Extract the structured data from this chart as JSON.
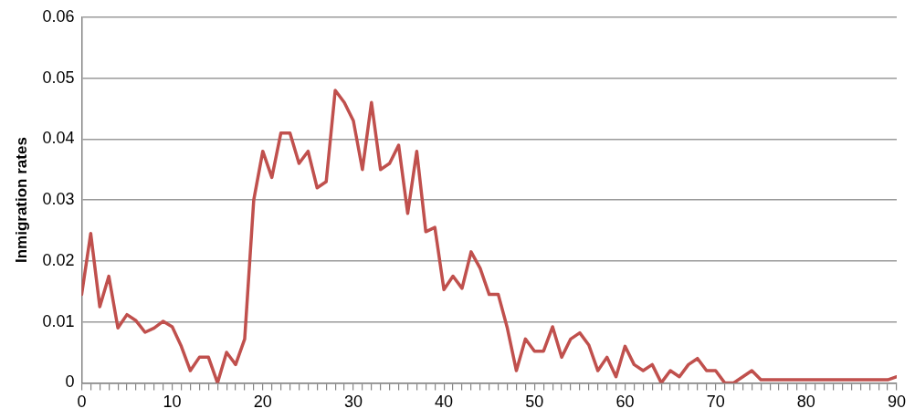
{
  "chart_data": {
    "type": "line",
    "ylabel": "Inmigration rates",
    "x": [
      0,
      1,
      2,
      3,
      4,
      5,
      6,
      7,
      8,
      9,
      10,
      11,
      12,
      13,
      14,
      15,
      16,
      17,
      18,
      19,
      20,
      21,
      22,
      23,
      24,
      25,
      26,
      27,
      28,
      29,
      30,
      31,
      32,
      33,
      34,
      35,
      36,
      37,
      38,
      39,
      40,
      41,
      42,
      43,
      44,
      45,
      46,
      47,
      48,
      49,
      50,
      51,
      52,
      53,
      54,
      55,
      56,
      57,
      58,
      59,
      60,
      61,
      62,
      63,
      64,
      65,
      66,
      67,
      68,
      69,
      70,
      71,
      72,
      73,
      74,
      75,
      76,
      77,
      78,
      79,
      80,
      81,
      82,
      83,
      84,
      85,
      86,
      87,
      88,
      89,
      90
    ],
    "series": [
      {
        "color": "#c0504d",
        "values": [
          0.0145,
          0.0245,
          0.0125,
          0.0175,
          0.009,
          0.0112,
          0.0102,
          0.0083,
          0.009,
          0.0101,
          0.0092,
          0.006,
          0.002,
          0.0042,
          0.0042,
          0,
          0.005,
          0.003,
          0.0072,
          0.03,
          0.038,
          0.0337,
          0.041,
          0.041,
          0.036,
          0.038,
          0.032,
          0.033,
          0.048,
          0.046,
          0.043,
          0.035,
          0.046,
          0.035,
          0.036,
          0.039,
          0.0278,
          0.038,
          0.0248,
          0.0255,
          0.0153,
          0.0175,
          0.0155,
          0.0215,
          0.0188,
          0.0145,
          0.0145,
          0.009,
          0.002,
          0.0072,
          0.0052,
          0.0052,
          0.0092,
          0.0042,
          0.0072,
          0.0082,
          0.0062,
          0.002,
          0.0042,
          0.001,
          0.006,
          0.003,
          0.002,
          0.003,
          0,
          0.002,
          0.001,
          0.003,
          0.004,
          0.002,
          0.002,
          0,
          0,
          0.001,
          0.002,
          0.0005,
          0.0005,
          0.0005,
          0.0005,
          0.0005,
          0.0005,
          0.0005,
          0.0005,
          0.0005,
          0.0005,
          0.0005,
          0.0005,
          0.0005,
          0.0005,
          0.0005,
          0.001
        ]
      }
    ],
    "xlim": [
      0,
      90
    ],
    "xticks": [
      0,
      {
        "value": 1,
        "label": null
      },
      {
        "value": 2,
        "label": null
      },
      {
        "value": 3,
        "label": null
      },
      {
        "value": 4,
        "label": null
      },
      {
        "value": 5,
        "label": null
      },
      {
        "value": 6,
        "label": null
      },
      {
        "value": 7,
        "label": null
      },
      {
        "value": 8,
        "label": null
      },
      {
        "value": 9,
        "label": null
      },
      10,
      {
        "value": 11,
        "label": null
      },
      {
        "value": 12,
        "label": null
      },
      {
        "value": 13,
        "label": null
      },
      {
        "value": 14,
        "label": null
      },
      {
        "value": 15,
        "label": null
      },
      {
        "value": 16,
        "label": null
      },
      {
        "value": 17,
        "label": null
      },
      {
        "value": 18,
        "label": null
      },
      {
        "value": 19,
        "label": null
      },
      20,
      {
        "value": 21,
        "label": null
      },
      {
        "value": 22,
        "label": null
      },
      {
        "value": 23,
        "label": null
      },
      {
        "value": 24,
        "label": null
      },
      {
        "value": 25,
        "label": null
      },
      {
        "value": 26,
        "label": null
      },
      {
        "value": 27,
        "label": null
      },
      {
        "value": 28,
        "label": null
      },
      {
        "value": 29,
        "label": null
      },
      30,
      {
        "value": 31,
        "label": null
      },
      {
        "value": 32,
        "label": null
      },
      {
        "value": 33,
        "label": null
      },
      {
        "value": 34,
        "label": null
      },
      {
        "value": 35,
        "label": null
      },
      {
        "value": 36,
        "label": null
      },
      {
        "value": 37,
        "label": null
      },
      {
        "value": 38,
        "label": null
      },
      {
        "value": 39,
        "label": null
      },
      40,
      {
        "value": 41,
        "label": null
      },
      {
        "value": 42,
        "label": null
      },
      {
        "value": 43,
        "label": null
      },
      {
        "value": 44,
        "label": null
      },
      {
        "value": 45,
        "label": null
      },
      {
        "value": 46,
        "label": null
      },
      {
        "value": 47,
        "label": null
      },
      {
        "value": 48,
        "label": null
      },
      {
        "value": 49,
        "label": null
      },
      50,
      {
        "value": 51,
        "label": null
      },
      {
        "value": 52,
        "label": null
      },
      {
        "value": 53,
        "label": null
      },
      {
        "value": 54,
        "label": null
      },
      {
        "value": 55,
        "label": null
      },
      {
        "value": 56,
        "label": null
      },
      {
        "value": 57,
        "label": null
      },
      {
        "value": 58,
        "label": null
      },
      {
        "value": 59,
        "label": null
      },
      60,
      {
        "value": 61,
        "label": null
      },
      {
        "value": 62,
        "label": null
      },
      {
        "value": 63,
        "label": null
      },
      {
        "value": 64,
        "label": null
      },
      {
        "value": 65,
        "label": null
      },
      {
        "value": 66,
        "label": null
      },
      {
        "value": 67,
        "label": null
      },
      {
        "value": 68,
        "label": null
      },
      {
        "value": 69,
        "label": null
      },
      70,
      {
        "value": 71,
        "label": null
      },
      {
        "value": 72,
        "label": null
      },
      {
        "value": 73,
        "label": null
      },
      {
        "value": 74,
        "label": null
      },
      {
        "value": 75,
        "label": null
      },
      {
        "value": 76,
        "label": null
      },
      {
        "value": 77,
        "label": null
      },
      {
        "value": 78,
        "label": null
      },
      {
        "value": 79,
        "label": null
      },
      80,
      {
        "value": 81,
        "label": null
      },
      {
        "value": 82,
        "label": null
      },
      {
        "value": 83,
        "label": null
      },
      {
        "value": 84,
        "label": null
      },
      {
        "value": 85,
        "label": null
      },
      {
        "value": 86,
        "label": null
      },
      {
        "value": 87,
        "label": null
      },
      {
        "value": 88,
        "label": null
      },
      {
        "value": 89,
        "label": null
      },
      90
    ],
    "ylim": [
      0,
      0.06
    ],
    "yticks": [
      0,
      0.01,
      0.02,
      0.03,
      0.04,
      0.05,
      0.06
    ],
    "grid": "y",
    "legend": false,
    "marker": "none",
    "line_style": "solid"
  }
}
